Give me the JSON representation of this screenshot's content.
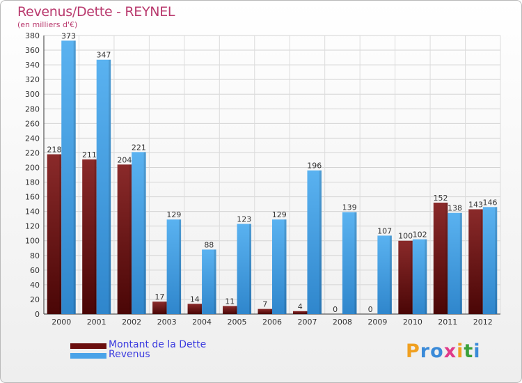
{
  "chart_data": {
    "type": "bar",
    "title": "Revenus/Dette - REYNEL",
    "subtitle": "(en milliers d'€)",
    "categories": [
      "2000",
      "2001",
      "2002",
      "2003",
      "2004",
      "2005",
      "2006",
      "2007",
      "2008",
      "2009",
      "2010",
      "2011",
      "2012"
    ],
    "series": [
      {
        "name": "Montant de la Dette",
        "color": "#7a1a1a",
        "values": [
          218,
          211,
          204,
          17,
          14,
          11,
          7,
          4,
          0,
          0,
          100,
          152,
          143
        ]
      },
      {
        "name": "Revenus",
        "color": "#4aa3e8",
        "values": [
          373,
          347,
          221,
          129,
          88,
          123,
          129,
          196,
          139,
          107,
          102,
          138,
          146
        ]
      }
    ],
    "ylim": [
      0,
      380
    ],
    "ytick_step": 20,
    "grid": true,
    "xlabel": "",
    "ylabel": ""
  },
  "logo": {
    "letters": [
      "P",
      "r",
      "o",
      "x",
      "i",
      "t",
      "i"
    ],
    "colors": [
      "#f0a020",
      "#3a8ad8",
      "#3a8ad8",
      "#e03a8a",
      "#f0a020",
      "#3aa03a",
      "#3a8ad8"
    ]
  }
}
